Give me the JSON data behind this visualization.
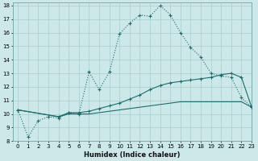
{
  "xlabel": "Humidex (Indice chaleur)",
  "xlim": [
    -0.5,
    23
  ],
  "ylim": [
    8,
    18.2
  ],
  "yticks": [
    8,
    9,
    10,
    11,
    12,
    13,
    14,
    15,
    16,
    17,
    18
  ],
  "xticks": [
    0,
    1,
    2,
    3,
    4,
    5,
    6,
    7,
    8,
    9,
    10,
    11,
    12,
    13,
    14,
    15,
    16,
    17,
    18,
    19,
    20,
    21,
    22,
    23
  ],
  "bg_color": "#cce8e8",
  "grid_color": "#aacccc",
  "line_color": "#1a6e6e",
  "line1_x": [
    0,
    1,
    2,
    3,
    4,
    5,
    6,
    7,
    8,
    9,
    10,
    11,
    12,
    13,
    14,
    15,
    16,
    17,
    18,
    19,
    20,
    21,
    22,
    23
  ],
  "line1_y": [
    10.3,
    8.3,
    9.5,
    9.8,
    9.7,
    10.1,
    10.0,
    13.1,
    11.8,
    13.1,
    15.9,
    16.7,
    17.3,
    17.2,
    18.0,
    17.3,
    16.0,
    14.9,
    14.2,
    13.0,
    12.8,
    12.7,
    11.2,
    10.5
  ],
  "line2_x": [
    0,
    4,
    5,
    6,
    7,
    8,
    9,
    10,
    11,
    12,
    13,
    14,
    15,
    16,
    17,
    18,
    19,
    20,
    21,
    22,
    23
  ],
  "line2_y": [
    10.3,
    9.8,
    10.1,
    10.1,
    10.2,
    10.4,
    10.6,
    10.8,
    11.1,
    11.4,
    11.8,
    12.1,
    12.3,
    12.4,
    12.5,
    12.6,
    12.7,
    12.9,
    13.0,
    12.7,
    10.5
  ],
  "line3_x": [
    0,
    4,
    5,
    6,
    7,
    8,
    9,
    10,
    11,
    12,
    13,
    14,
    15,
    16,
    17,
    18,
    19,
    20,
    21,
    22,
    23
  ],
  "line3_y": [
    10.3,
    9.8,
    10.0,
    10.0,
    10.0,
    10.1,
    10.2,
    10.3,
    10.4,
    10.5,
    10.6,
    10.7,
    10.8,
    10.9,
    10.9,
    10.9,
    10.9,
    10.9,
    10.9,
    10.9,
    10.5
  ]
}
